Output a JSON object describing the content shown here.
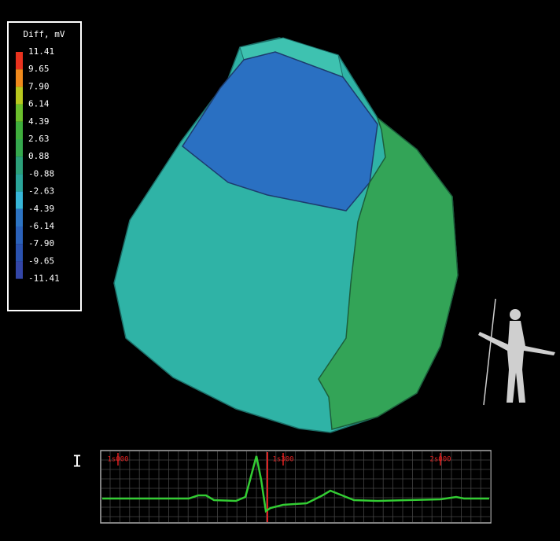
{
  "legend": {
    "title": "Diff, mV",
    "labels": [
      "11.41",
      "9.65",
      "7.90",
      "6.14",
      "4.39",
      "2.63",
      "0.88",
      "-0.88",
      "-2.63",
      "-4.39",
      "-6.14",
      "-7.90",
      "-9.65",
      "-11.41"
    ],
    "colors": [
      "#e8321e",
      "#f08a1c",
      "#b9c81e",
      "#6cbf2c",
      "#3fae3c",
      "#35a84e",
      "#2ca07a",
      "#2aa59a",
      "#37b6d8",
      "#2d74c4",
      "#2b62bb",
      "#2a52b0",
      "#3346a8"
    ]
  },
  "ecg": {
    "lead": "I",
    "time_labels": [
      "1s000",
      "1s300",
      "2s000"
    ]
  }
}
